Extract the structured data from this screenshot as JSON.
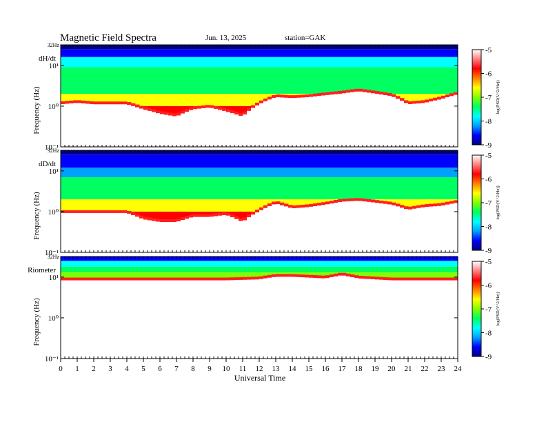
{
  "header": {
    "title": "Magnetic  Field  Spectra",
    "date": "Jun. 13, 2025",
    "station": "station=GAK"
  },
  "xaxis": {
    "label": "Universal Time",
    "ticks": [
      "0",
      "1",
      "2",
      "3",
      "4",
      "5",
      "6",
      "7",
      "8",
      "9",
      "10",
      "11",
      "12",
      "13",
      "14",
      "15",
      "16",
      "17",
      "18",
      "19",
      "20",
      "21",
      "22",
      "23",
      "24"
    ]
  },
  "panels": [
    {
      "label": "dH/dt",
      "ylabel": "Frequency  (Hz)",
      "top_label": "32Hz",
      "yticks": [
        "10¹",
        "10⁰",
        "10⁻¹"
      ]
    },
    {
      "label": "dD/dt",
      "ylabel": "Frequency  (Hz)",
      "top_label": "32Hz",
      "yticks": [
        "10¹",
        "10⁰",
        "10⁻¹"
      ]
    },
    {
      "label": "Riometer",
      "ylabel": "Frequency  (Hz)",
      "top_label": "32Hz",
      "yticks": [
        "10¹",
        "10⁰",
        "10⁻¹"
      ]
    }
  ],
  "colorbar": {
    "label": "log(PSD(V^2/Hz))",
    "ticks": [
      "-5",
      "-6",
      "-7",
      "-8",
      "-9"
    ]
  },
  "chart_data": {
    "type": "heatmap",
    "title": "Magnetic  Field  Spectra",
    "xlabel": "Universal Time",
    "ylabel": "Frequency  (Hz)",
    "xlim": [
      0,
      24
    ],
    "ylim": [
      0.1,
      32
    ],
    "yscale": "log",
    "zlim": [
      -9,
      -5
    ],
    "colormap": [
      "#000080",
      "#0000ff",
      "#00a0ff",
      "#00ffff",
      "#00ff60",
      "#80ff00",
      "#ffff00",
      "#ff8000",
      "#ff0000",
      "#ffd8d8",
      "#ffffff"
    ],
    "panels": [
      {
        "name": "dH/dt",
        "bands": [
          {
            "f_low": 25,
            "f_high": 32,
            "level": -9
          },
          {
            "f_low": 16,
            "f_high": 25,
            "level": -8.5
          },
          {
            "f_low": 9,
            "f_high": 16,
            "level": -7.6
          },
          {
            "f_low": 2,
            "f_high": 9,
            "level": -7.0
          },
          {
            "f_low": 1,
            "f_high": 2,
            "level": -6.2
          },
          {
            "f_low": 0.1,
            "f_high": 1,
            "level": -5.0
          }
        ],
        "red_edge_hz": [
          [
            0,
            1.2
          ],
          [
            1,
            1.3
          ],
          [
            2,
            1.2
          ],
          [
            3,
            1.2
          ],
          [
            4,
            1.2
          ],
          [
            5,
            0.9
          ],
          [
            6,
            0.7
          ],
          [
            7,
            0.6
          ],
          [
            8,
            0.9
          ],
          [
            9,
            1.0
          ],
          [
            10,
            0.8
          ],
          [
            11,
            0.6
          ],
          [
            12,
            1.2
          ],
          [
            13,
            1.8
          ],
          [
            14,
            1.7
          ],
          [
            15,
            1.8
          ],
          [
            16,
            2.0
          ],
          [
            17,
            2.2
          ],
          [
            18,
            2.5
          ],
          [
            19,
            2.2
          ],
          [
            20,
            1.9
          ],
          [
            21,
            1.2
          ],
          [
            22,
            1.3
          ],
          [
            23,
            1.6
          ],
          [
            24,
            2.1
          ]
        ]
      },
      {
        "name": "dD/dt",
        "bands": [
          {
            "f_low": 25,
            "f_high": 32,
            "level": -9
          },
          {
            "f_low": 12,
            "f_high": 25,
            "level": -8.5
          },
          {
            "f_low": 7,
            "f_high": 12,
            "level": -7.8
          },
          {
            "f_low": 2,
            "f_high": 7,
            "level": -7.0
          },
          {
            "f_low": 1,
            "f_high": 2,
            "level": -6.2
          },
          {
            "f_low": 0.1,
            "f_high": 1,
            "level": -5.0
          }
        ],
        "red_edge_hz": [
          [
            0,
            1.0
          ],
          [
            1,
            1.0
          ],
          [
            2,
            1.0
          ],
          [
            3,
            1.0
          ],
          [
            4,
            1.0
          ],
          [
            5,
            0.7
          ],
          [
            6,
            0.6
          ],
          [
            7,
            0.6
          ],
          [
            8,
            0.8
          ],
          [
            9,
            0.8
          ],
          [
            10,
            0.9
          ],
          [
            11,
            0.6
          ],
          [
            12,
            1.1
          ],
          [
            13,
            1.7
          ],
          [
            14,
            1.3
          ],
          [
            15,
            1.4
          ],
          [
            16,
            1.6
          ],
          [
            17,
            1.9
          ],
          [
            18,
            2.0
          ],
          [
            19,
            1.8
          ],
          [
            20,
            1.6
          ],
          [
            21,
            1.2
          ],
          [
            22,
            1.4
          ],
          [
            23,
            1.5
          ],
          [
            24,
            1.8
          ]
        ]
      },
      {
        "name": "Riometer",
        "bands": [
          {
            "f_low": 25,
            "f_high": 32,
            "level": -8.5
          },
          {
            "f_low": 18,
            "f_high": 25,
            "level": -7.6
          },
          {
            "f_low": 13,
            "f_high": 18,
            "level": -7.0
          },
          {
            "f_low": 9,
            "f_high": 13,
            "level": -6.4
          },
          {
            "f_low": 4,
            "f_high": 9,
            "level": -5.8
          },
          {
            "f_low": 0.1,
            "f_high": 4,
            "level": -5.0
          }
        ],
        "red_edge_hz": [
          [
            0,
            9
          ],
          [
            2,
            9
          ],
          [
            4,
            9
          ],
          [
            6,
            9
          ],
          [
            8,
            9
          ],
          [
            10,
            9
          ],
          [
            12,
            9.5
          ],
          [
            13,
            11
          ],
          [
            14,
            11
          ],
          [
            16,
            10
          ],
          [
            17,
            12
          ],
          [
            18,
            10
          ],
          [
            20,
            9
          ],
          [
            22,
            9
          ],
          [
            24,
            9
          ]
        ]
      }
    ]
  }
}
